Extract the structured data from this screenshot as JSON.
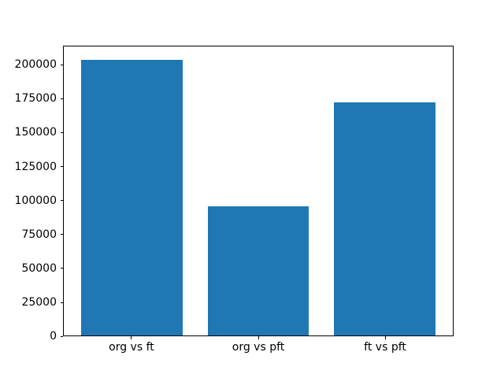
{
  "chart_data": {
    "type": "bar",
    "categories": [
      "org vs ft",
      "org vs pft",
      "ft vs pft"
    ],
    "values": [
      204000,
      95500,
      172500
    ],
    "title": "",
    "xlabel": "",
    "ylabel": "",
    "ylim": [
      0,
      214200
    ],
    "yticks": [
      0,
      25000,
      50000,
      75000,
      100000,
      125000,
      150000,
      175000,
      200000
    ],
    "bar_color": "#1f77b4",
    "grid": false,
    "legend": null
  },
  "colors": {
    "bar": "#1f77b4",
    "axis": "#000000",
    "background": "#ffffff"
  }
}
